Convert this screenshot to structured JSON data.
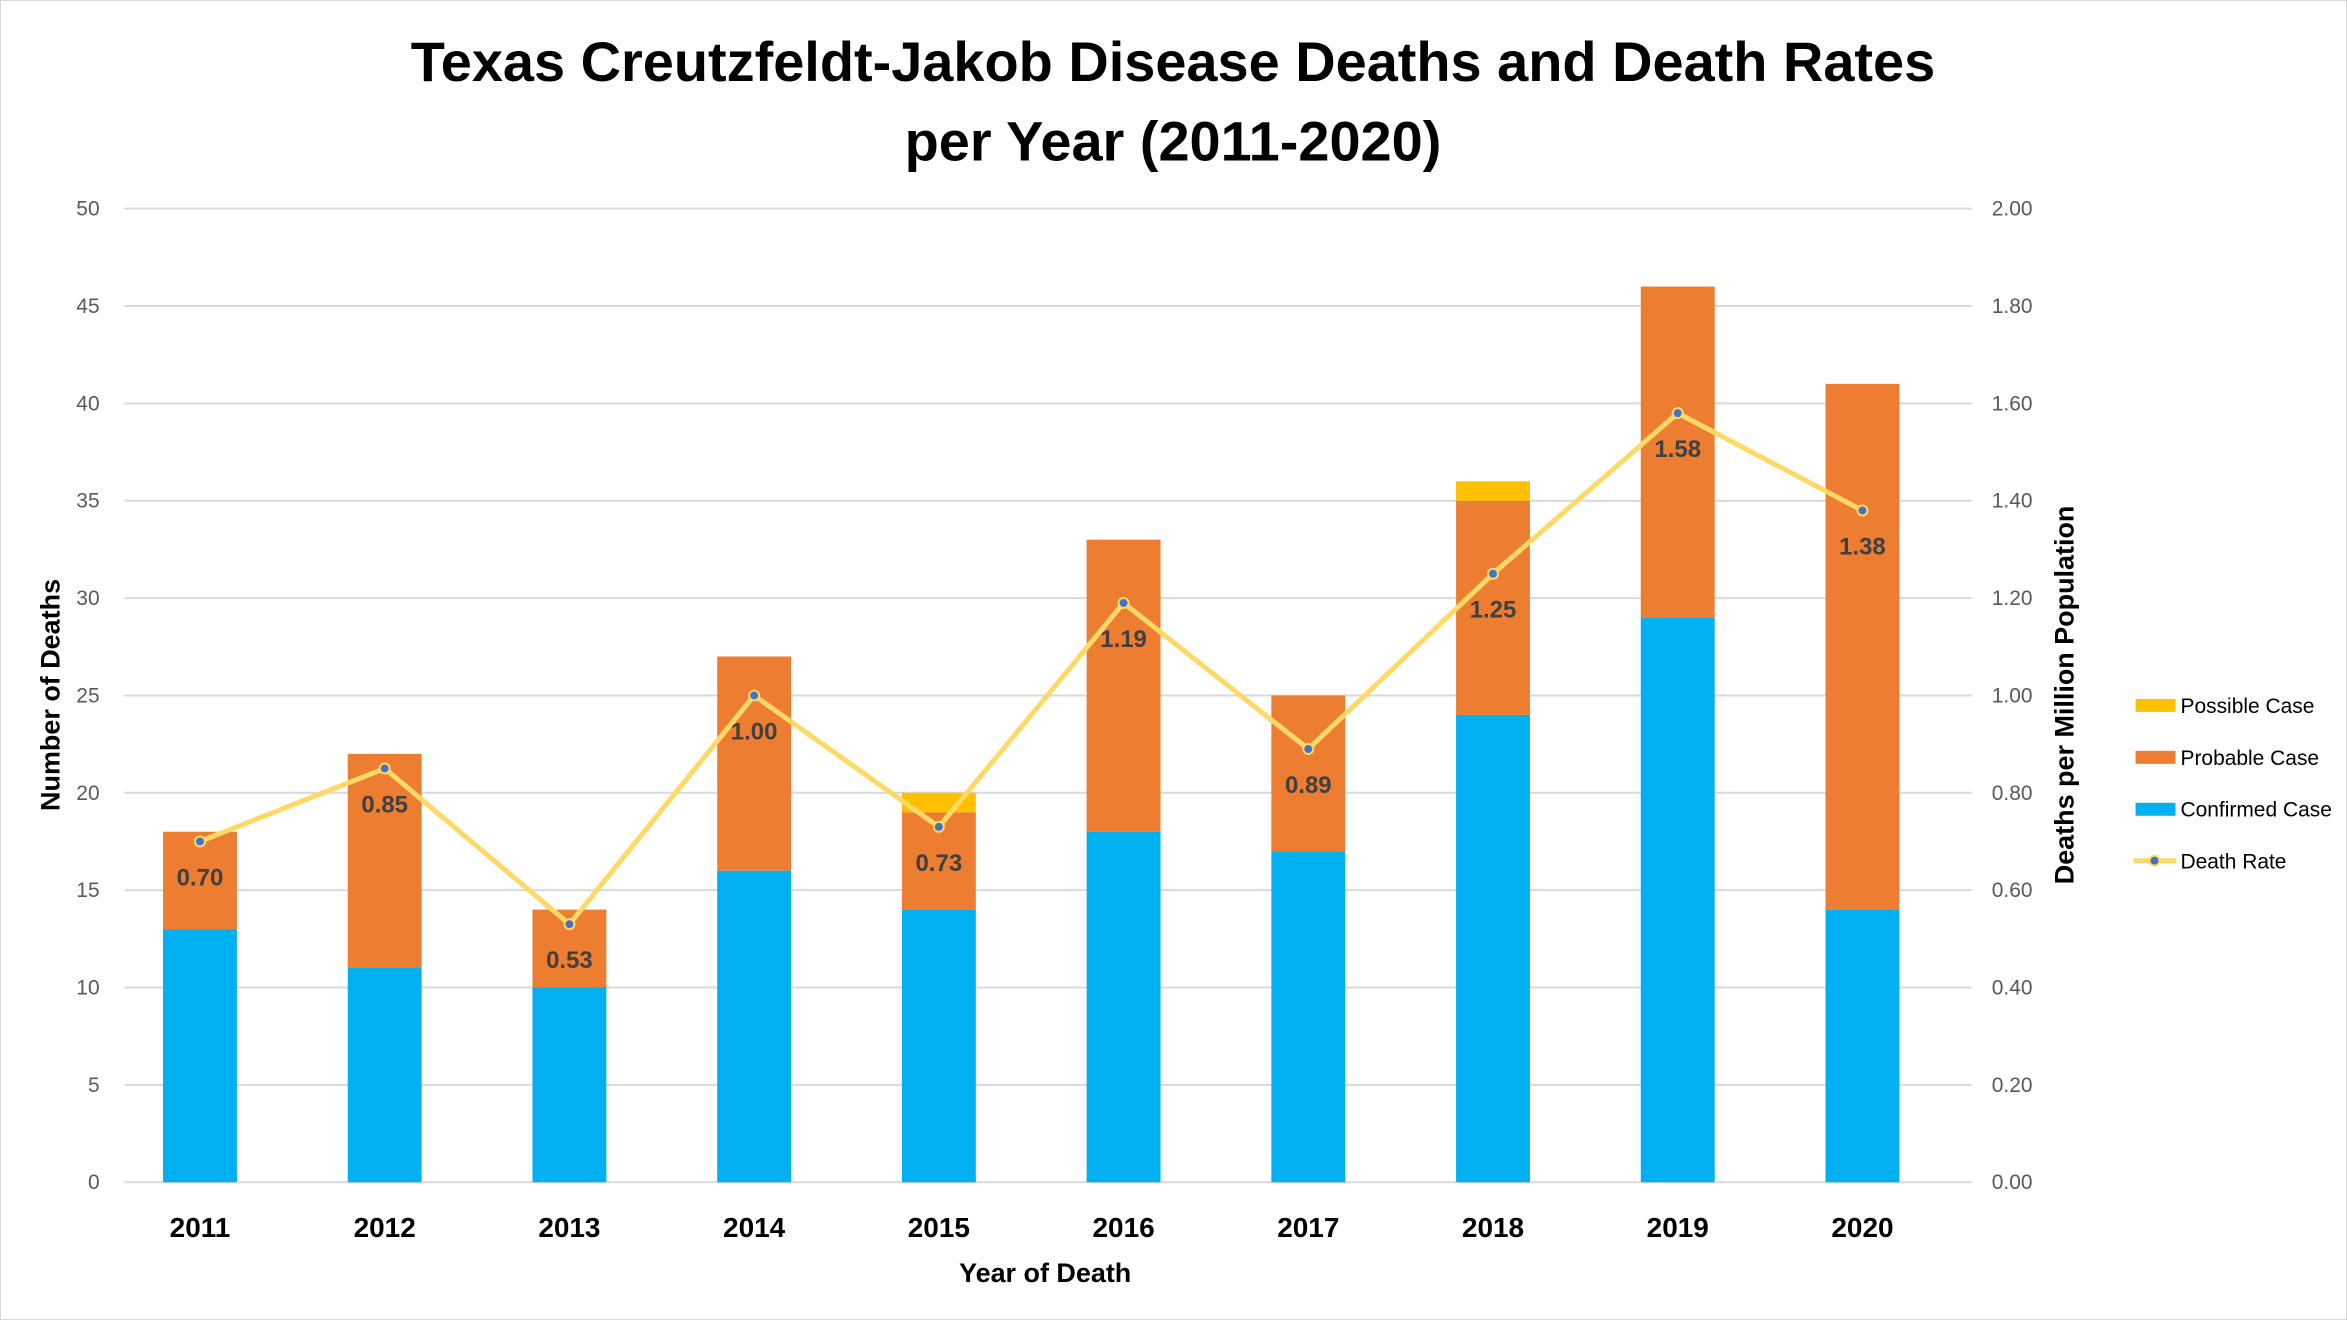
{
  "chart_data": {
    "type": "bar",
    "stacked": true,
    "title": "Texas Creutzfeldt-Jakob Disease Deaths and Death Rates per Year (2011-2020)",
    "title_lines": [
      "Texas Creutzfeldt-Jakob Disease Deaths and Death Rates",
      "per Year (2011-2020)"
    ],
    "xlabel": "Year of Death",
    "ylabel": "Number of Deaths",
    "y2label": "Deaths per Million Population",
    "categories": [
      "2011",
      "2012",
      "2013",
      "2014",
      "2015",
      "2016",
      "2017",
      "2018",
      "2019",
      "2020"
    ],
    "ylim": [
      0,
      50
    ],
    "yticks": [
      "0",
      "5",
      "10",
      "15",
      "20",
      "25",
      "30",
      "35",
      "40",
      "45",
      "50"
    ],
    "y2lim": [
      0,
      2
    ],
    "y2ticks": [
      "0.00",
      "0.20",
      "0.40",
      "0.60",
      "0.80",
      "1.00",
      "1.20",
      "1.40",
      "1.60",
      "1.80",
      "2.00"
    ],
    "grid": true,
    "legend_position": "right",
    "series": [
      {
        "name": "Confirmed Case",
        "type": "bar",
        "color": "#00B0F0",
        "values": [
          13,
          11,
          10,
          16,
          14,
          18,
          17,
          24,
          29,
          14
        ]
      },
      {
        "name": "Probable Case",
        "type": "bar",
        "color": "#ED7D31",
        "values": [
          5,
          11,
          4,
          11,
          5,
          15,
          8,
          11,
          17,
          27
        ]
      },
      {
        "name": "Possible Case",
        "type": "bar",
        "color": "#FFC000",
        "values": [
          0,
          0,
          0,
          0,
          1,
          0,
          0,
          1,
          0,
          0
        ]
      },
      {
        "name": "Death Rate",
        "type": "line",
        "axis": "secondary",
        "color": "#FFD966",
        "marker_color": "#4472C4",
        "values": [
          0.7,
          0.85,
          0.53,
          1.0,
          0.73,
          1.19,
          0.89,
          1.25,
          1.58,
          1.38
        ],
        "labels": [
          "0.70",
          "0.85",
          "0.53",
          "1.00",
          "0.73",
          "1.19",
          "0.89",
          "1.25",
          "1.58",
          "1.38"
        ]
      }
    ],
    "legend": [
      "Possible Case",
      "Probable Case",
      "Confirmed Case",
      "Death Rate"
    ]
  }
}
